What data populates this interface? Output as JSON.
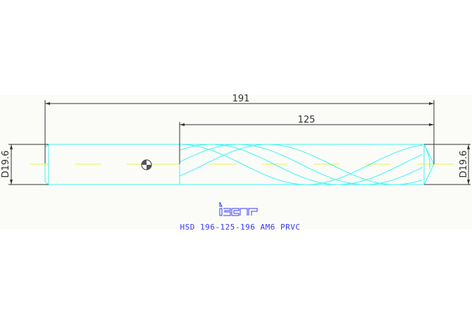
{
  "dimensions": {
    "overall_length": "191",
    "flute_length": "125",
    "shank_diameter": "D19.6",
    "tip_diameter": "D19.6"
  },
  "logo": {
    "text": "iscar"
  },
  "caption": "HSD 196-125-196 AM6 PRVC",
  "colors": {
    "outline": "#3ff2f2",
    "centerline": "#f2f23a",
    "dimension": "#333333",
    "caption": "#3a3af2",
    "background": "#fbfcf8"
  }
}
